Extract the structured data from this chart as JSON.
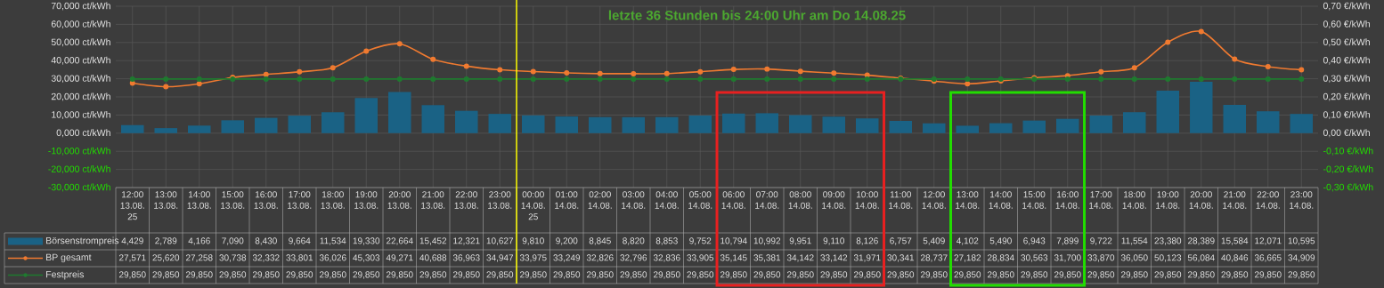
{
  "chart_data": {
    "type": "bar",
    "title": "letzte 36 Stunden bis 24:00 Uhr am Do 14.08.25",
    "categories": [
      "12:00 13.08. 25",
      "13:00 13.08.",
      "14:00 13.08.",
      "15:00 13.08.",
      "16:00 13.08.",
      "17:00 13.08.",
      "18:00 13.08.",
      "19:00 13.08.",
      "20:00 13.08.",
      "21:00 13.08.",
      "22:00 13.08.",
      "23:00 13.08.",
      "00:00 14.08. 25",
      "01:00 14.08.",
      "02:00 14.08.",
      "03:00 14.08.",
      "04:00 14.08.",
      "05:00 14.08.",
      "06:00 14.08.",
      "07:00 14.08.",
      "08:00 14.08.",
      "09:00 14.08.",
      "10:00 14.08.",
      "11:00 14.08.",
      "12:00 14.08.",
      "13:00 14.08.",
      "14:00 14.08.",
      "15:00 14.08.",
      "16:00 14.08.",
      "17:00 14.08.",
      "18:00 14.08.",
      "19:00 14.08.",
      "20:00 14.08.",
      "21:00 14.08.",
      "22:00 14.08.",
      "23:00 14.08."
    ],
    "series": [
      {
        "name": "Börsenstrompreis",
        "color": "#1a6285",
        "values": [
          4.429,
          2.789,
          4.166,
          7.09,
          8.43,
          9.664,
          11.534,
          19.33,
          22.664,
          15.452,
          12.321,
          10.627,
          9.81,
          9.2,
          8.845,
          8.82,
          8.853,
          9.752,
          10.794,
          10.992,
          9.951,
          9.11,
          8.126,
          6.757,
          5.409,
          4.102,
          5.49,
          6.943,
          7.899,
          9.722,
          11.554,
          23.38,
          28.389,
          15.584,
          12.071,
          10.595
        ],
        "value_labels": [
          "4,429",
          "2,789",
          "4,166",
          "7,090",
          "8,430",
          "9,664",
          "11,534",
          "19,330",
          "22,664",
          "15,452",
          "12,321",
          "10,627",
          "9,810",
          "9,200",
          "8,845",
          "8,820",
          "8,853",
          "9,752",
          "10,794",
          "10,992",
          "9,951",
          "9,110",
          "8,126",
          "6,757",
          "5,409",
          "4,102",
          "5,490",
          "6,943",
          "7,899",
          "9,722",
          "11,554",
          "23,380",
          "28,389",
          "15,584",
          "12,071",
          "10,595"
        ]
      },
      {
        "name": "BP gesamt",
        "type": "line",
        "color": "#f07a30",
        "values": [
          27.571,
          25.62,
          27.258,
          30.738,
          32.332,
          33.801,
          36.026,
          45.303,
          49.271,
          40.688,
          36.963,
          34.947,
          33.975,
          33.249,
          32.826,
          32.796,
          32.836,
          33.905,
          35.145,
          35.381,
          34.142,
          33.142,
          31.971,
          30.341,
          28.737,
          27.182,
          28.834,
          30.563,
          31.7,
          33.87,
          36.05,
          50.123,
          56.084,
          40.846,
          36.665,
          34.909
        ],
        "value_labels": [
          "27,571",
          "25,620",
          "27,258",
          "30,738",
          "32,332",
          "33,801",
          "36,026",
          "45,303",
          "49,271",
          "40,688",
          "36,963",
          "34,947",
          "33,975",
          "33,249",
          "32,826",
          "32,796",
          "32,836",
          "33,905",
          "35,145",
          "35,381",
          "34,142",
          "33,142",
          "31,971",
          "30,341",
          "28,737",
          "27,182",
          "28,834",
          "30,563",
          "31,700",
          "33,870",
          "36,050",
          "50,123",
          "56,084",
          "40,846",
          "36,665",
          "34,909"
        ]
      },
      {
        "name": "Festpreis",
        "type": "line",
        "color": "#1f7a2f",
        "values": [
          29.85,
          29.85,
          29.85,
          29.85,
          29.85,
          29.85,
          29.85,
          29.85,
          29.85,
          29.85,
          29.85,
          29.85,
          29.85,
          29.85,
          29.85,
          29.85,
          29.85,
          29.85,
          29.85,
          29.85,
          29.85,
          29.85,
          29.85,
          29.85,
          29.85,
          29.85,
          29.85,
          29.85,
          29.85,
          29.85,
          29.85,
          29.85,
          29.85,
          29.85,
          29.85,
          29.85
        ],
        "value_labels": [
          "29,850",
          "29,850",
          "29,850",
          "29,850",
          "29,850",
          "29,850",
          "29,850",
          "29,850",
          "29,850",
          "29,850",
          "29,850",
          "29,850",
          "29,850",
          "29,850",
          "29,850",
          "29,850",
          "29,850",
          "29,850",
          "29,850",
          "29,850",
          "29,850",
          "29,850",
          "29,850",
          "29,850",
          "29,850",
          "29,850",
          "29,850",
          "29,850",
          "29,850",
          "29,850",
          "29,850",
          "29,850",
          "29,850",
          "29,850",
          "29,850",
          "29,850"
        ]
      }
    ],
    "ylim": [
      -30,
      70
    ],
    "yticks": [
      {
        "value": -30,
        "label": "-30,000 ct/kWh"
      },
      {
        "value": -20,
        "label": "-20,000 ct/kWh"
      },
      {
        "value": -10,
        "label": "-10,000 ct/kWh"
      },
      {
        "value": 0,
        "label": "0,000 ct/kWh"
      },
      {
        "value": 10,
        "label": "10,000 ct/kWh"
      },
      {
        "value": 20,
        "label": "20,000 ct/kWh"
      },
      {
        "value": 30,
        "label": "30,000 ct/kWh"
      },
      {
        "value": 40,
        "label": "40,000 ct/kWh"
      },
      {
        "value": 50,
        "label": "50,000 ct/kWh"
      },
      {
        "value": 60,
        "label": "60,000 ct/kWh"
      },
      {
        "value": 70,
        "label": "70,000 ct/kWh"
      }
    ],
    "y2lim": [
      -0.3,
      0.7
    ],
    "y2ticks": [
      {
        "value": -0.3,
        "label": "-0,30 €/kWh"
      },
      {
        "value": -0.2,
        "label": "-0,20 €/kWh"
      },
      {
        "value": -0.1,
        "label": "-0,10 €/kWh"
      },
      {
        "value": 0,
        "label": "0,00 €/kWh"
      },
      {
        "value": 0.1,
        "label": "0,10 €/kWh"
      },
      {
        "value": 0.2,
        "label": "0,20 €/kWh"
      },
      {
        "value": 0.3,
        "label": "0,30 €/kWh"
      },
      {
        "value": 0.4,
        "label": "0,40 €/kWh"
      },
      {
        "value": 0.5,
        "label": "0,50 €/kWh"
      },
      {
        "value": 0.6,
        "label": "0,60 €/kWh"
      },
      {
        "value": 0.7,
        "label": "0,70 €/kWh"
      }
    ],
    "ref_lines": [
      {
        "axis": "x",
        "value": "00:00 14.08. 25",
        "color": "#ffff00"
      }
    ],
    "grid": true,
    "legend": "bottom",
    "marker": "circle"
  }
}
